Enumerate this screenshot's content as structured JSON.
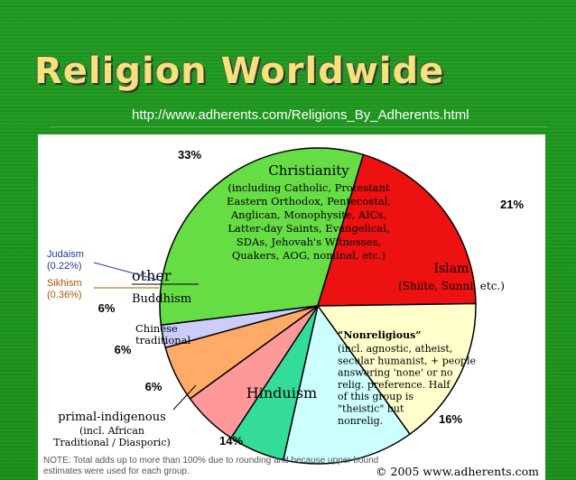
{
  "slide": {
    "title": "Religion Worldwide",
    "url": "http://www.adherents.com/Religions_By_Adherents.html"
  },
  "chart_data": {
    "type": "pie",
    "title": "",
    "slices": [
      {
        "name": "Christianity",
        "value": 33,
        "percent_label": "33%",
        "color": "#66dd44",
        "sublabel": [
          "(including Catholic, Protestant",
          "Eastern Orthodox, Pentecostal,",
          "Anglican, Monophysite, AICs,",
          "Latter-day Saints, Evangelical,",
          "SDAs, Jehovah's Witnesses,",
          "Quakers, AOG, nominal, etc.)"
        ]
      },
      {
        "name": "Islam",
        "value": 21,
        "percent_label": "21%",
        "color": "#ee1111",
        "sublabel": [
          "(Shiite, Sunni, etc.)"
        ]
      },
      {
        "name": "Nonreligious",
        "value": 16,
        "percent_label": "16%",
        "color": "#ffffcc",
        "sublabel": [
          "(incl. agnostic, atheist,",
          "secular humanist, + people",
          "answering 'none' or no",
          "relig. preference. Half",
          "of this group is",
          "\"theistic\" but",
          "nonrelig."
        ]
      },
      {
        "name": "Hinduism",
        "value": 14,
        "percent_label": "14%",
        "color": "#ccffff",
        "sublabel": []
      },
      {
        "name": "primal-indigenous",
        "value": 6,
        "percent_label": "6%",
        "color": "#33dd99",
        "sublabel": [
          "(incl. African",
          "Traditional / Diasporic)"
        ]
      },
      {
        "name": "Chinese traditional",
        "value": 6,
        "percent_label": "6%",
        "color": "#ff9999",
        "sublabel": []
      },
      {
        "name": "Buddhism",
        "value": 6,
        "percent_label": "6%",
        "color": "#ffaa66",
        "sublabel": []
      },
      {
        "name": "other",
        "value": 2.42,
        "percent_label": "",
        "color": "#ccccff",
        "sublabel": []
      }
    ],
    "small_labels": [
      {
        "name": "Judaism",
        "value": "(0.22%)",
        "color": "#2233aa"
      },
      {
        "name": "Sikhism",
        "value": "(0.36%)",
        "color": "#aa5500"
      }
    ],
    "note": [
      "NOTE: Total adds up to more than 100% due to rounding and because upper bound",
      "estimates were used for each group."
    ],
    "credit": "© 2005 www.adherents.com",
    "colors": {
      "outline": "#000000",
      "text": "#000000"
    }
  }
}
